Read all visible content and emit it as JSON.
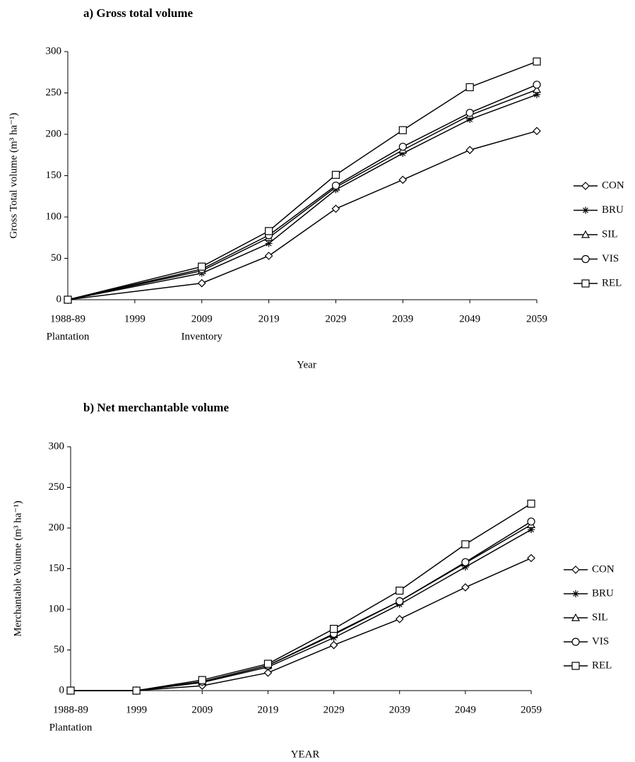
{
  "chart_data": [
    {
      "type": "line",
      "title": "a) Gross total volume",
      "x_label": "Year",
      "y_label": "Gross Total volume (m³ ha⁻¹)",
      "x": [
        1989,
        2009,
        2019,
        2029,
        2039,
        2049,
        2059
      ],
      "xlim": [
        1989,
        2059
      ],
      "xticks": [
        {
          "value": 1989,
          "label": "1988-89"
        },
        1999,
        2009,
        2019,
        2029,
        2039,
        2049,
        2059
      ],
      "annotations": [
        {
          "x": 1989,
          "text": "Plantation"
        },
        {
          "x": 2009,
          "text": "Inventory"
        }
      ],
      "ylim": [
        0,
        300
      ],
      "yticks": [
        0,
        50,
        100,
        150,
        200,
        250,
        300
      ],
      "grid": false,
      "legend": "right",
      "series": [
        {
          "name": "CON",
          "color": "#000000",
          "marker": "diamond",
          "values": [
            0,
            20,
            53,
            110,
            145,
            181,
            204
          ]
        },
        {
          "name": "BRU",
          "color": "#000000",
          "marker": "asterisk",
          "values": [
            0,
            32,
            68,
            133,
            177,
            218,
            248
          ]
        },
        {
          "name": "SIL",
          "color": "#000000",
          "marker": "triangle",
          "values": [
            0,
            35,
            75,
            136,
            181,
            223,
            254
          ]
        },
        {
          "name": "VIS",
          "color": "#000000",
          "marker": "circle",
          "values": [
            0,
            37,
            78,
            138,
            185,
            226,
            260
          ]
        },
        {
          "name": "REL",
          "color": "#000000",
          "marker": "square",
          "values": [
            0,
            40,
            83,
            151,
            205,
            257,
            288
          ]
        }
      ]
    },
    {
      "type": "line",
      "title": "b) Net merchantable volume",
      "x_label": "YEAR",
      "y_label": "Merchantable Volume (m³ ha⁻¹)",
      "x": [
        1989,
        1999,
        2009,
        2019,
        2029,
        2039,
        2049,
        2059
      ],
      "xlim": [
        1989,
        2059
      ],
      "xticks": [
        {
          "value": 1989,
          "label": "1988-89"
        },
        1999,
        2009,
        2019,
        2029,
        2039,
        2049,
        2059
      ],
      "annotations": [
        {
          "x": 1989,
          "text": "Plantation"
        }
      ],
      "ylim": [
        0,
        300
      ],
      "yticks": [
        0,
        50,
        100,
        150,
        200,
        250,
        300
      ],
      "grid": false,
      "legend": "right",
      "series": [
        {
          "name": "CON",
          "color": "#000000",
          "marker": "diamond",
          "values": [
            0,
            0,
            6,
            22,
            56,
            88,
            127,
            163
          ]
        },
        {
          "name": "BRU",
          "color": "#000000",
          "marker": "asterisk",
          "values": [
            0,
            0,
            10,
            29,
            65,
            106,
            152,
            198
          ]
        },
        {
          "name": "SIL",
          "color": "#000000",
          "marker": "triangle",
          "values": [
            0,
            0,
            11,
            31,
            69,
            110,
            157,
            204
          ]
        },
        {
          "name": "VIS",
          "color": "#000000",
          "marker": "circle",
          "values": [
            0,
            0,
            11,
            31,
            70,
            110,
            158,
            208
          ]
        },
        {
          "name": "REL",
          "color": "#000000",
          "marker": "square",
          "values": [
            0,
            0,
            13,
            33,
            76,
            123,
            180,
            230
          ]
        }
      ]
    }
  ]
}
